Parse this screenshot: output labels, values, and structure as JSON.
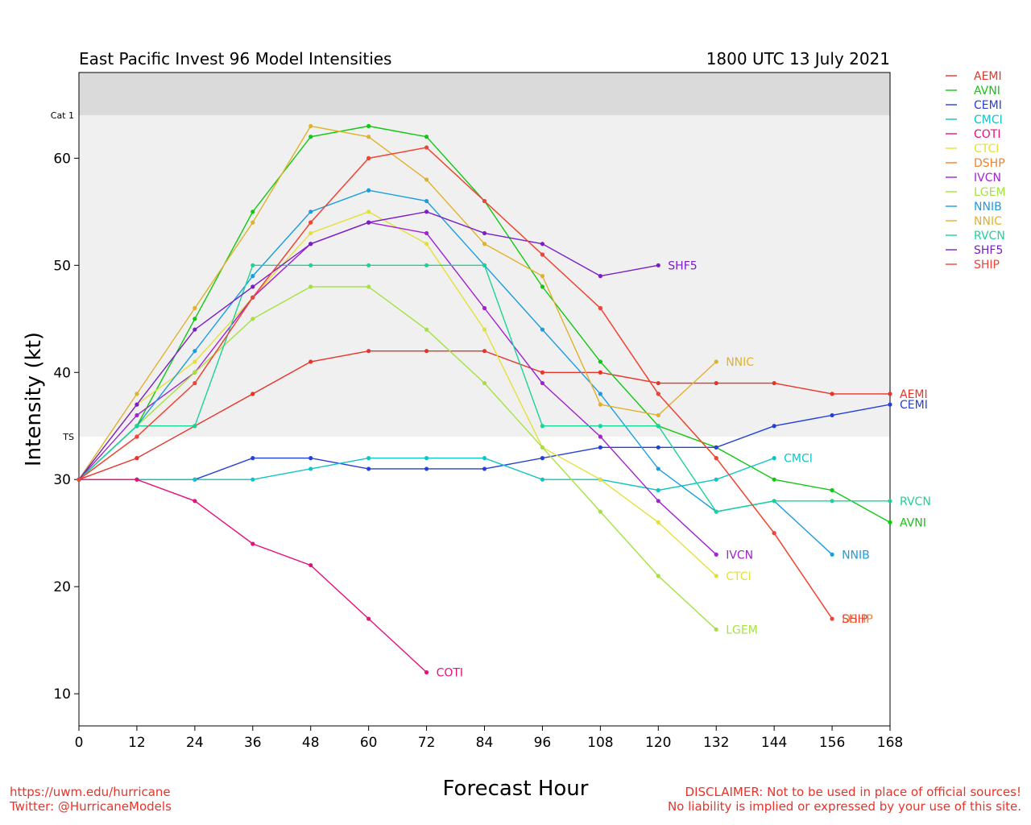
{
  "title": "East Pacific Invest 96 Model Intensities",
  "timestamp": "1800 UTC 13 July 2021",
  "footer": {
    "url": "https://uwm.edu/hurricane",
    "twitter": "Twitter: @HurricaneModels",
    "xlabel": "Forecast Hour",
    "disclaimer1": "DISCLAIMER: Not to be used in place of official sources!",
    "disclaimer2": "No liability is implied or expressed by your use of this site."
  },
  "chart_data": {
    "type": "line",
    "title": "East Pacific Invest 96 Model Intensities",
    "xlabel": "Forecast Hour",
    "ylabel": "Intensity (kt)",
    "xlim": [
      0,
      168
    ],
    "ylim": [
      7,
      68
    ],
    "xticks": [
      0,
      12,
      24,
      36,
      48,
      60,
      72,
      84,
      96,
      108,
      120,
      132,
      144,
      156,
      168
    ],
    "yticks": [
      10,
      20,
      30,
      40,
      50,
      60
    ],
    "bands": [
      {
        "label": "TS",
        "from": 34,
        "to": 64,
        "color": "#f0f0f0"
      },
      {
        "label": "Cat 1",
        "from": 64,
        "to": 68,
        "color": "#dadada"
      }
    ],
    "legend_position": "right-outside",
    "series": [
      {
        "name": "AEMI",
        "color": "#e8332a",
        "x": [
          0,
          12,
          24,
          36,
          48,
          60,
          72,
          84,
          96,
          108,
          120,
          132,
          144,
          156,
          168
        ],
        "y": [
          30,
          32,
          35,
          38,
          41,
          42,
          42,
          42,
          40,
          40,
          39,
          39,
          39,
          38,
          38
        ],
        "end_label": "AEMI"
      },
      {
        "name": "AVNI",
        "color": "#11c811",
        "x": [
          0,
          12,
          24,
          36,
          48,
          60,
          72,
          84,
          96,
          108,
          120,
          132,
          144,
          156,
          168
        ],
        "y": [
          30,
          35,
          45,
          55,
          62,
          63,
          62,
          56,
          48,
          41,
          35,
          33,
          30,
          29,
          26
        ],
        "end_label": "AVNI"
      },
      {
        "name": "CEMI",
        "color": "#2440d6",
        "x": [
          0,
          12,
          24,
          36,
          48,
          60,
          72,
          84,
          96,
          108,
          120,
          132,
          144,
          156,
          168
        ],
        "y": [
          30,
          30,
          30,
          32,
          32,
          31,
          31,
          31,
          32,
          33,
          33,
          33,
          35,
          36,
          37
        ],
        "end_label": "CEMI"
      },
      {
        "name": "CMCI",
        "color": "#11c4c4",
        "x": [
          0,
          12,
          24,
          36,
          48,
          60,
          72,
          84,
          96,
          108,
          120,
          132,
          144
        ],
        "y": [
          30,
          30,
          30,
          30,
          31,
          32,
          32,
          32,
          30,
          30,
          29,
          30,
          32
        ],
        "end_label": "CMCI"
      },
      {
        "name": "COTI",
        "color": "#e8107a",
        "x": [
          0,
          12,
          24,
          36,
          48,
          60,
          72
        ],
        "y": [
          30,
          30,
          28,
          24,
          22,
          17,
          12
        ],
        "end_label": "COTI"
      },
      {
        "name": "CTCI",
        "color": "#e4e03a",
        "x": [
          0,
          12,
          24,
          36,
          48,
          60,
          72,
          84,
          96,
          108,
          120,
          132
        ],
        "y": [
          30,
          37,
          41,
          47,
          53,
          55,
          52,
          44,
          33,
          30,
          26,
          21
        ],
        "end_label": "CTCI"
      },
      {
        "name": "DSHP",
        "color": "#f2822a",
        "x": [
          0,
          12,
          24,
          36,
          48,
          60,
          72,
          84,
          96,
          108,
          120,
          132,
          144,
          156
        ],
        "y": [
          30,
          34,
          39,
          47,
          54,
          60,
          61,
          56,
          51,
          46,
          38,
          32,
          25,
          17
        ],
        "end_label": "DSHP"
      },
      {
        "name": "IVCN",
        "color": "#a321d2",
        "x": [
          0,
          12,
          24,
          36,
          48,
          60,
          72,
          84,
          96,
          108,
          120,
          132
        ],
        "y": [
          30,
          36,
          40,
          47,
          52,
          54,
          53,
          46,
          39,
          34,
          28,
          23
        ],
        "end_label": "IVCN"
      },
      {
        "name": "LGEM",
        "color": "#a5e23e",
        "x": [
          0,
          12,
          24,
          36,
          48,
          60,
          72,
          84,
          96,
          108,
          120,
          132
        ],
        "y": [
          30,
          35,
          40,
          45,
          48,
          48,
          44,
          39,
          33,
          27,
          21,
          16
        ],
        "end_label": "LGEM"
      },
      {
        "name": "NNIB",
        "color": "#1a9de0",
        "x": [
          0,
          12,
          24,
          36,
          48,
          60,
          72,
          84,
          96,
          108,
          120,
          132,
          144,
          156
        ],
        "y": [
          30,
          35,
          42,
          49,
          55,
          57,
          56,
          50,
          44,
          38,
          31,
          27,
          28,
          23
        ],
        "end_label": "NNIB"
      },
      {
        "name": "NNIC",
        "color": "#e0b22c",
        "x": [
          0,
          12,
          24,
          36,
          48,
          60,
          72,
          84,
          96,
          108,
          120,
          132
        ],
        "y": [
          30,
          38,
          46,
          54,
          63,
          62,
          58,
          52,
          49,
          37,
          36,
          41
        ],
        "end_label": "NNIC"
      },
      {
        "name": "RVCN",
        "color": "#1ad39a",
        "x": [
          0,
          12,
          24,
          36,
          48,
          60,
          72,
          84,
          96,
          108,
          120,
          132,
          144,
          156,
          168
        ],
        "y": [
          30,
          35,
          35,
          50,
          50,
          50,
          50,
          50,
          35,
          35,
          35,
          27,
          28,
          28,
          28
        ],
        "end_label": "RVCN"
      },
      {
        "name": "SHF5",
        "color": "#7a1ec8",
        "x": [
          0,
          12,
          24,
          36,
          48,
          60,
          72,
          84,
          96,
          108,
          120
        ],
        "y": [
          30,
          37,
          44,
          48,
          52,
          54,
          55,
          53,
          52,
          49,
          50
        ],
        "end_label": "SHF5"
      },
      {
        "name": "SHIP",
        "color": "#f0443a",
        "x": [
          0,
          12,
          24,
          36,
          48,
          60,
          72,
          84,
          96,
          108,
          120,
          132,
          144,
          156
        ],
        "y": [
          30,
          34,
          39,
          47,
          54,
          60,
          61,
          56,
          51,
          46,
          38,
          32,
          25,
          17
        ],
        "end_label": "SHIP"
      }
    ]
  }
}
